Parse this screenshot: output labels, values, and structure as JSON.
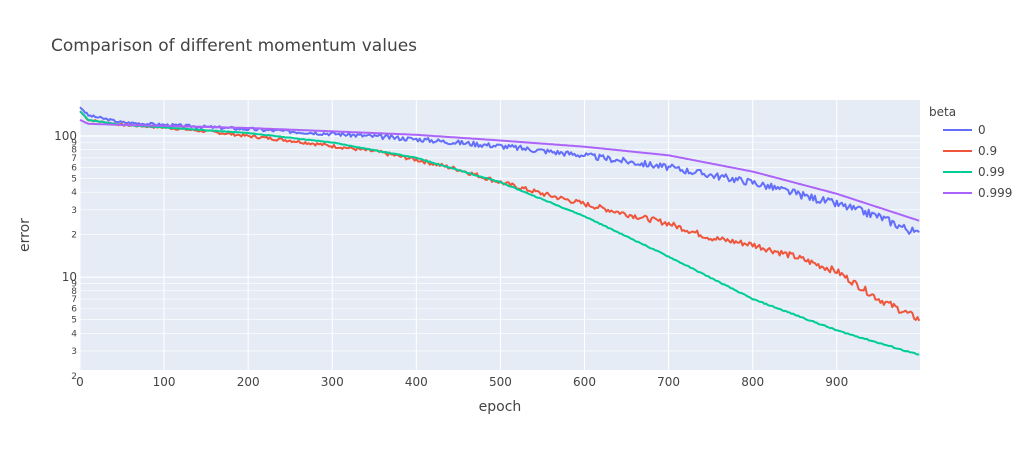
{
  "chart_data": {
    "type": "line",
    "title": "Comparison of different momentum values",
    "xlabel": "epoch",
    "ylabel": "error",
    "xlim": [
      0,
      999
    ],
    "ylim": [
      2.2,
      180
    ],
    "y_scale": "log",
    "x_ticks": [
      0,
      100,
      200,
      300,
      400,
      500,
      600,
      700,
      800,
      900
    ],
    "y_major_ticks": [
      {
        "value": 100,
        "label": "100"
      },
      {
        "value": 10,
        "label": "10"
      }
    ],
    "y_minor_ticks": [
      {
        "value": 2,
        "label": "2"
      },
      {
        "value": 3,
        "label": "3"
      },
      {
        "value": 4,
        "label": "4"
      },
      {
        "value": 5,
        "label": "5"
      },
      {
        "value": 6,
        "label": "6"
      },
      {
        "value": 7,
        "label": "7"
      },
      {
        "value": 8,
        "label": "8"
      },
      {
        "value": 9,
        "label": "9"
      },
      {
        "value": 20,
        "label": "2"
      },
      {
        "value": 30,
        "label": "3"
      },
      {
        "value": 40,
        "label": "4"
      },
      {
        "value": 50,
        "label": "5"
      },
      {
        "value": 60,
        "label": "6"
      },
      {
        "value": 70,
        "label": "7"
      },
      {
        "value": 80,
        "label": "8"
      },
      {
        "value": 90,
        "label": "9"
      }
    ],
    "grid": true,
    "background_color": "#e5ecf6",
    "legend": {
      "title": "beta",
      "placement": "right"
    },
    "series": [
      {
        "name": "0",
        "color": "#636efa",
        "noise": 0.07,
        "seed": 3,
        "points": [
          [
            0,
            160
          ],
          [
            10,
            140
          ],
          [
            50,
            125
          ],
          [
            100,
            120
          ],
          [
            200,
            112
          ],
          [
            300,
            104
          ],
          [
            400,
            95
          ],
          [
            500,
            85
          ],
          [
            600,
            73
          ],
          [
            700,
            60
          ],
          [
            800,
            47
          ],
          [
            900,
            33
          ],
          [
            950,
            27
          ],
          [
            999,
            20
          ]
        ]
      },
      {
        "name": "0.9",
        "color": "#ef553b",
        "noise": 0.06,
        "seed": 7,
        "points": [
          [
            0,
            150
          ],
          [
            10,
            130
          ],
          [
            50,
            120
          ],
          [
            100,
            115
          ],
          [
            150,
            108
          ],
          [
            200,
            100
          ],
          [
            250,
            93
          ],
          [
            300,
            85
          ],
          [
            350,
            78
          ],
          [
            400,
            68
          ],
          [
            450,
            58
          ],
          [
            500,
            47
          ],
          [
            550,
            39
          ],
          [
            600,
            33
          ],
          [
            650,
            28
          ],
          [
            700,
            24
          ],
          [
            750,
            19
          ],
          [
            800,
            17
          ],
          [
            850,
            14
          ],
          [
            900,
            11
          ],
          [
            950,
            7
          ],
          [
            999,
            5
          ]
        ]
      },
      {
        "name": "0.99",
        "color": "#00cc96",
        "noise": 0.01,
        "seed": 11,
        "points": [
          [
            0,
            150
          ],
          [
            10,
            130
          ],
          [
            50,
            120
          ],
          [
            100,
            115
          ],
          [
            200,
            105
          ],
          [
            300,
            90
          ],
          [
            400,
            70
          ],
          [
            500,
            47
          ],
          [
            600,
            27
          ],
          [
            700,
            14
          ],
          [
            800,
            7
          ],
          [
            900,
            4.2
          ],
          [
            999,
            2.8
          ]
        ]
      },
      {
        "name": "0.999",
        "color": "#ab63fa",
        "noise": 0.0,
        "seed": 13,
        "points": [
          [
            0,
            130
          ],
          [
            10,
            122
          ],
          [
            50,
            120
          ],
          [
            100,
            118
          ],
          [
            200,
            114
          ],
          [
            300,
            108
          ],
          [
            400,
            102
          ],
          [
            500,
            93
          ],
          [
            600,
            84
          ],
          [
            700,
            73
          ],
          [
            800,
            56
          ],
          [
            900,
            39
          ],
          [
            999,
            25
          ]
        ]
      }
    ]
  }
}
